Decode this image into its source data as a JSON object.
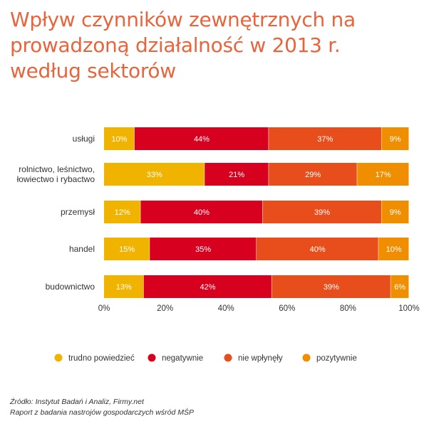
{
  "title_lines": [
    "Wpływ czynników zewnętrznych na",
    "prowadzoną działalność w 2013 r.",
    "według sektorów"
  ],
  "source_lines": [
    "Źródło: Instytut Badań i Analiz, Firmy.net",
    "Raport z badania nastrojów gospodarczych wśród MŚP"
  ],
  "chart_data": {
    "type": "bar",
    "orientation": "horizontal",
    "stacked": true,
    "categories": [
      [
        "usługi"
      ],
      [
        "rolnictwo, leśnictwo,",
        "łowiectwo i rybactwo"
      ],
      [
        "przemysł"
      ],
      [
        "handel"
      ],
      [
        "budownictwo"
      ]
    ],
    "series": [
      {
        "name": "trudno powiedzieć",
        "color": "#f0b400",
        "values": [
          10,
          33,
          12,
          15,
          13
        ]
      },
      {
        "name": "negatywnie",
        "color": "#d7001e",
        "values": [
          44,
          21,
          40,
          35,
          42
        ]
      },
      {
        "name": "nie wpłynęły",
        "color": "#e84e1b",
        "values": [
          37,
          29,
          39,
          40,
          39
        ]
      },
      {
        "name": "pozytywnie",
        "color": "#ef8e00",
        "values": [
          9,
          17,
          9,
          10,
          6
        ]
      }
    ],
    "value_suffix": "%",
    "xlim": [
      0,
      100
    ],
    "xticks": [
      0,
      20,
      40,
      60,
      80,
      100
    ],
    "xtick_labels": [
      "0%",
      "20%",
      "40%",
      "60%",
      "80%",
      "100%"
    ],
    "legend_position": "bottom",
    "grid": false
  }
}
